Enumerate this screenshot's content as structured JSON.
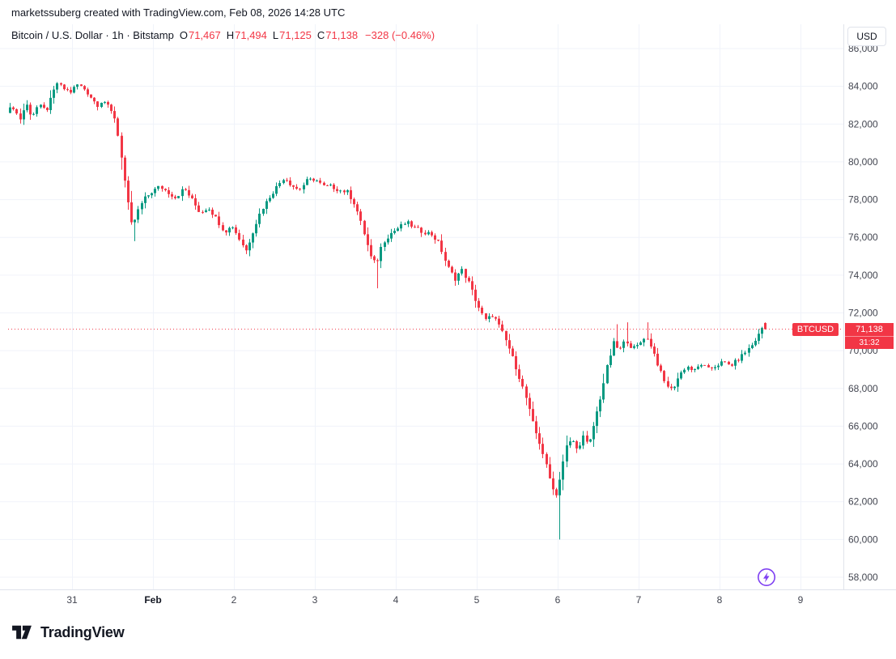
{
  "attribution": "marketssuberg created with TradingView.com, Feb 08, 2026 14:28 UTC",
  "legend": {
    "symbol_title": "Bitcoin / U.S. Dollar · 1h · Bitstamp",
    "ohlc": [
      {
        "label": "O",
        "value": "71,467"
      },
      {
        "label": "H",
        "value": "71,494"
      },
      {
        "label": "L",
        "value": "71,125"
      },
      {
        "label": "C",
        "value": "71,138"
      }
    ],
    "change": "−328 (−0.46%)"
  },
  "price_scale": {
    "currency_label": "USD",
    "ticks": [
      {
        "value": 86000,
        "label": "86,000"
      },
      {
        "value": 84000,
        "label": "84,000"
      },
      {
        "value": 82000,
        "label": "82,000"
      },
      {
        "value": 80000,
        "label": "80,000"
      },
      {
        "value": 78000,
        "label": "78,000"
      },
      {
        "value": 76000,
        "label": "76,000"
      },
      {
        "value": 74000,
        "label": "74,000"
      },
      {
        "value": 72000,
        "label": "72,000"
      },
      {
        "value": 70000,
        "label": "70,000"
      },
      {
        "value": 68000,
        "label": "68,000"
      },
      {
        "value": 66000,
        "label": "66,000"
      },
      {
        "value": 64000,
        "label": "64,000"
      },
      {
        "value": 62000,
        "label": "62,000"
      },
      {
        "value": 60000,
        "label": "60,000"
      },
      {
        "value": 58000,
        "label": "58,000"
      }
    ],
    "last_price": {
      "symbol": "BTCUSD",
      "price": "71,138",
      "countdown": "31:32",
      "value": 71138
    }
  },
  "time_scale": {
    "ticks": [
      {
        "label": "31",
        "day": 0
      },
      {
        "label": "Feb",
        "day": 1,
        "bold": true
      },
      {
        "label": "2",
        "day": 2
      },
      {
        "label": "3",
        "day": 3
      },
      {
        "label": "4",
        "day": 4
      },
      {
        "label": "5",
        "day": 5
      },
      {
        "label": "6",
        "day": 6
      },
      {
        "label": "7",
        "day": 7
      },
      {
        "label": "8",
        "day": 8
      },
      {
        "label": "9",
        "day": 9
      }
    ]
  },
  "logo": {
    "text": "TradingView"
  },
  "colors": {
    "up": "#089981",
    "down": "#f23645",
    "grid": "#f0f3fa",
    "axis_text": "#434651",
    "axis_border": "#e0e3eb",
    "accent_red": "#f23645",
    "flash": "#7e3ff2",
    "text": "#131722",
    "muted": "#787b86"
  },
  "chart_data": {
    "type": "candlestick",
    "symbol": "BTCUSD",
    "exchange": "Bitstamp",
    "interval": "1h",
    "title": "Bitcoin / U.S. Dollar",
    "price_axis": {
      "min": 58000,
      "max": 86000,
      "step": 2000
    },
    "time_axis_days": [
      "31",
      "Feb",
      "2",
      "3",
      "4",
      "5",
      "6",
      "7",
      "8",
      "9"
    ],
    "start_day": -0.79,
    "end_day": 8.604,
    "noise_amp": 110,
    "last_candle": {
      "open": 71467,
      "high": 71494,
      "low": 71125,
      "close": 71138
    },
    "wick_spikes": [
      {
        "day": 0.76,
        "low": 75800
      },
      {
        "day": 2.17,
        "low": 75000
      },
      {
        "day": 3.77,
        "low": 73300
      },
      {
        "day": 6.02,
        "low": 60000
      }
    ],
    "high_spikes": [
      {
        "day": 6.71,
        "high": 71400
      },
      {
        "day": 6.86,
        "high": 71500
      },
      {
        "day": 7.1,
        "high": 71500
      }
    ],
    "waypoints": [
      [
        -0.79,
        82700
      ],
      [
        -0.7,
        82900
      ],
      [
        -0.63,
        82200
      ],
      [
        -0.55,
        83100
      ],
      [
        -0.48,
        82400
      ],
      [
        -0.4,
        83000
      ],
      [
        -0.3,
        82700
      ],
      [
        -0.22,
        83600
      ],
      [
        -0.17,
        84200
      ],
      [
        -0.1,
        83900
      ],
      [
        0.0,
        83700
      ],
      [
        0.08,
        84100
      ],
      [
        0.16,
        83900
      ],
      [
        0.24,
        83500
      ],
      [
        0.33,
        83000
      ],
      [
        0.4,
        83300
      ],
      [
        0.48,
        82800
      ],
      [
        0.55,
        82300
      ],
      [
        0.62,
        80500
      ],
      [
        0.7,
        78000
      ],
      [
        0.76,
        76500
      ],
      [
        0.82,
        77300
      ],
      [
        0.9,
        78000
      ],
      [
        1.0,
        78400
      ],
      [
        1.1,
        78700
      ],
      [
        1.2,
        78400
      ],
      [
        1.3,
        78100
      ],
      [
        1.4,
        78600
      ],
      [
        1.5,
        78000
      ],
      [
        1.6,
        77300
      ],
      [
        1.7,
        77600
      ],
      [
        1.8,
        77000
      ],
      [
        1.9,
        76300
      ],
      [
        2.0,
        76600
      ],
      [
        2.1,
        75800
      ],
      [
        2.17,
        75300
      ],
      [
        2.25,
        76300
      ],
      [
        2.35,
        77400
      ],
      [
        2.45,
        78100
      ],
      [
        2.55,
        78700
      ],
      [
        2.64,
        79200
      ],
      [
        2.72,
        78800
      ],
      [
        2.82,
        78500
      ],
      [
        2.92,
        79000
      ],
      [
        3.02,
        79100
      ],
      [
        3.12,
        78700
      ],
      [
        3.22,
        78700
      ],
      [
        3.32,
        78500
      ],
      [
        3.42,
        78400
      ],
      [
        3.52,
        77700
      ],
      [
        3.62,
        76300
      ],
      [
        3.72,
        74800
      ],
      [
        3.78,
        74600
      ],
      [
        3.85,
        75700
      ],
      [
        3.95,
        76200
      ],
      [
        4.05,
        76500
      ],
      [
        4.15,
        76800
      ],
      [
        4.25,
        76500
      ],
      [
        4.35,
        76300
      ],
      [
        4.45,
        76200
      ],
      [
        4.55,
        75700
      ],
      [
        4.65,
        74500
      ],
      [
        4.75,
        73800
      ],
      [
        4.83,
        74300
      ],
      [
        4.92,
        73600
      ],
      [
        5.02,
        72500
      ],
      [
        5.12,
        71600
      ],
      [
        5.22,
        71900
      ],
      [
        5.32,
        71100
      ],
      [
        5.42,
        70100
      ],
      [
        5.52,
        68900
      ],
      [
        5.62,
        67600
      ],
      [
        5.72,
        66000
      ],
      [
        5.82,
        64800
      ],
      [
        5.92,
        63200
      ],
      [
        6.0,
        62300
      ],
      [
        6.06,
        63600
      ],
      [
        6.12,
        64900
      ],
      [
        6.2,
        65300
      ],
      [
        6.26,
        64700
      ],
      [
        6.33,
        65500
      ],
      [
        6.4,
        64900
      ],
      [
        6.47,
        66200
      ],
      [
        6.55,
        67600
      ],
      [
        6.63,
        69200
      ],
      [
        6.71,
        70400
      ],
      [
        6.78,
        70000
      ],
      [
        6.86,
        70600
      ],
      [
        6.94,
        70100
      ],
      [
        7.02,
        70300
      ],
      [
        7.1,
        70800
      ],
      [
        7.18,
        70200
      ],
      [
        7.26,
        69200
      ],
      [
        7.34,
        68300
      ],
      [
        7.43,
        67900
      ],
      [
        7.52,
        68700
      ],
      [
        7.61,
        69200
      ],
      [
        7.7,
        68900
      ],
      [
        7.79,
        69300
      ],
      [
        7.88,
        69000
      ],
      [
        7.97,
        69200
      ],
      [
        8.06,
        69400
      ],
      [
        8.15,
        69200
      ],
      [
        8.24,
        69500
      ],
      [
        8.33,
        69900
      ],
      [
        8.42,
        70300
      ],
      [
        8.51,
        70900
      ],
      [
        8.57,
        71450
      ],
      [
        8.604,
        71138
      ]
    ]
  }
}
